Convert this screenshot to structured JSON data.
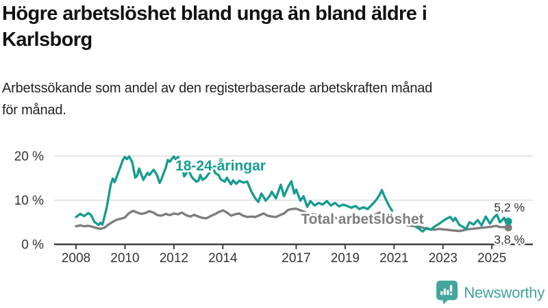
{
  "header": {
    "title_line1": "Högre arbetslöshet bland unga än bland äldre i",
    "title_line2": "Karlsborg",
    "subtitle_line1": "Arbetssökande som andel av den registerbaserade arbetskraften månad",
    "subtitle_line2": "för månad."
  },
  "footer": {
    "brand": "Newsworthy",
    "brand_color": "#3fa29a",
    "logo_icon": "newsworthy-speech-bubble-bar-chart-icon"
  },
  "chart_data": {
    "type": "line",
    "title": "Högre arbetslöshet bland unga än bland äldre i Karlsborg",
    "subtitle": "Arbetssökande som andel av den registerbaserade arbetskraften månad för månad.",
    "unit": "%",
    "grid": "horizontal-only",
    "legend_position": "inline-labels",
    "x_axis": {
      "ticks": [
        2008,
        2010,
        2012,
        2014,
        2017,
        2019,
        2021,
        2023,
        2025
      ],
      "range_years": [
        2007.1,
        2026.3
      ]
    },
    "y_axis": {
      "ticks": [
        {
          "value": 0,
          "label": "0 %"
        },
        {
          "value": 10,
          "label": "10 %"
        },
        {
          "value": 20,
          "label": "20 %"
        }
      ],
      "range": [
        0,
        22
      ]
    },
    "series": [
      {
        "name": "Total arbetslöshet",
        "color": "#7d7d7d",
        "end_value": 3.8,
        "end_label": "3,8 %",
        "segments": [
          [
            [
              2008.0,
              4.1
            ],
            [
              2008.17,
              4.3
            ],
            [
              2008.33,
              4.1
            ],
            [
              2008.5,
              4.2
            ],
            [
              2008.67,
              4.0
            ],
            [
              2008.83,
              3.7
            ],
            [
              2009.0,
              3.5
            ],
            [
              2009.17,
              3.8
            ],
            [
              2009.33,
              4.5
            ],
            [
              2009.5,
              5.1
            ],
            [
              2009.67,
              5.6
            ],
            [
              2009.83,
              5.8
            ],
            [
              2010.0,
              6.1
            ],
            [
              2010.17,
              7.1
            ],
            [
              2010.33,
              7.6
            ],
            [
              2010.5,
              7.2
            ],
            [
              2010.67,
              6.9
            ],
            [
              2010.83,
              7.1
            ],
            [
              2011.0,
              7.5
            ],
            [
              2011.17,
              7.2
            ],
            [
              2011.33,
              6.6
            ],
            [
              2011.5,
              6.5
            ],
            [
              2011.67,
              6.9
            ],
            [
              2011.83,
              6.6
            ],
            [
              2012.0,
              7.0
            ],
            [
              2012.17,
              6.8
            ],
            [
              2012.33,
              7.2
            ],
            [
              2012.5,
              6.6
            ],
            [
              2012.67,
              6.3
            ],
            [
              2012.83,
              6.7
            ],
            [
              2013.0,
              6.3
            ],
            [
              2013.17,
              6.0
            ],
            [
              2013.33,
              5.9
            ],
            [
              2013.5,
              6.4
            ],
            [
              2013.67,
              6.8
            ],
            [
              2013.83,
              7.3
            ],
            [
              2014.0,
              7.7
            ],
            [
              2014.17,
              7.2
            ],
            [
              2014.33,
              6.5
            ],
            [
              2014.5,
              6.8
            ],
            [
              2014.67,
              7.0
            ],
            [
              2014.83,
              6.5
            ],
            [
              2015.0,
              6.2
            ],
            [
              2015.17,
              6.3
            ],
            [
              2015.33,
              6.2
            ],
            [
              2015.5,
              6.6
            ],
            [
              2015.67,
              7.0
            ],
            [
              2015.83,
              6.5
            ],
            [
              2016.0,
              6.3
            ],
            [
              2016.17,
              6.2
            ],
            [
              2016.33,
              6.6
            ],
            [
              2016.5,
              7.0
            ],
            [
              2016.67,
              7.8
            ],
            [
              2016.83,
              8.0
            ],
            [
              2017.0,
              8.1
            ],
            [
              2017.17,
              7.7
            ],
            [
              2017.33,
              7.4
            ],
            [
              2017.5,
              7.0
            ],
            [
              2017.67,
              6.8
            ],
            [
              2017.83,
              6.6
            ],
            [
              2018.0,
              6.4
            ],
            [
              2018.25,
              6.2
            ],
            [
              2018.5,
              6.0
            ],
            [
              2018.75,
              5.9
            ],
            [
              2019.0,
              5.8
            ],
            [
              2019.25,
              5.7
            ],
            [
              2019.5,
              5.6
            ],
            [
              2019.75,
              5.7
            ],
            [
              2020.0,
              6.0
            ],
            [
              2020.25,
              6.8
            ],
            [
              2020.42,
              7.2
            ],
            [
              2020.58,
              7.0
            ],
            [
              2020.75,
              6.6
            ],
            [
              2020.92,
              6.2
            ],
            [
              2021.0,
              6.0
            ]
          ],
          [
            [
              2021.55,
              4.3
            ],
            [
              2021.7,
              4.2
            ],
            [
              2021.9,
              4.1
            ],
            [
              2022.0,
              4.0
            ],
            [
              2022.17,
              3.8
            ],
            [
              2022.33,
              3.5
            ],
            [
              2022.5,
              3.4
            ],
            [
              2022.67,
              3.3
            ],
            [
              2022.83,
              3.5
            ],
            [
              2023.0,
              3.4
            ],
            [
              2023.17,
              3.3
            ],
            [
              2023.33,
              3.2
            ],
            [
              2023.5,
              3.1
            ],
            [
              2023.67,
              3.0
            ],
            [
              2023.83,
              3.2
            ],
            [
              2024.0,
              3.4
            ],
            [
              2024.17,
              3.5
            ],
            [
              2024.33,
              3.6
            ],
            [
              2024.5,
              3.7
            ],
            [
              2024.67,
              3.8
            ],
            [
              2024.83,
              3.9
            ],
            [
              2025.0,
              4.0
            ],
            [
              2025.17,
              4.2
            ],
            [
              2025.33,
              3.9
            ],
            [
              2025.5,
              3.9
            ],
            [
              2025.67,
              3.8
            ]
          ]
        ]
      },
      {
        "name": "18-24-åringar",
        "color": "#169c8f",
        "end_value": 5.2,
        "end_label": "5,2 %",
        "segments": [
          [
            [
              2008.0,
              6.2
            ],
            [
              2008.17,
              6.9
            ],
            [
              2008.33,
              6.4
            ],
            [
              2008.5,
              7.1
            ],
            [
              2008.62,
              6.6
            ],
            [
              2008.75,
              5.1
            ],
            [
              2008.92,
              4.4
            ],
            [
              2009.0,
              4.9
            ],
            [
              2009.08,
              4.5
            ],
            [
              2009.25,
              8.2
            ],
            [
              2009.42,
              13.6
            ],
            [
              2009.5,
              14.9
            ],
            [
              2009.58,
              14.1
            ],
            [
              2009.75,
              16.6
            ],
            [
              2009.92,
              19.2
            ],
            [
              2010.0,
              19.8
            ],
            [
              2010.08,
              19.3
            ],
            [
              2010.17,
              19.9
            ],
            [
              2010.3,
              18.6
            ],
            [
              2010.42,
              15.1
            ],
            [
              2010.5,
              15.6
            ],
            [
              2010.58,
              17.2
            ],
            [
              2010.75,
              14.6
            ],
            [
              2010.92,
              16.2
            ],
            [
              2011.0,
              15.7
            ],
            [
              2011.17,
              16.9
            ],
            [
              2011.3,
              15.8
            ],
            [
              2011.42,
              13.9
            ],
            [
              2011.5,
              14.9
            ],
            [
              2011.67,
              17.4
            ],
            [
              2011.75,
              19.1
            ],
            [
              2011.83,
              18.7
            ],
            [
              2011.92,
              19.4
            ],
            [
              2012.0,
              19.9
            ],
            [
              2012.08,
              19.2
            ],
            [
              2012.17,
              19.8
            ],
            [
              2012.33,
              17.7
            ],
            [
              2012.42,
              15.4
            ],
            [
              2012.5,
              16.0
            ],
            [
              2012.58,
              16.9
            ],
            [
              2012.75,
              15.1
            ],
            [
              2012.92,
              14.2
            ],
            [
              2013.0,
              14.4
            ],
            [
              2013.08,
              15.7
            ],
            [
              2013.17,
              14.6
            ],
            [
              2013.3,
              15.1
            ],
            [
              2013.42,
              16.0
            ],
            [
              2013.58,
              17.4
            ],
            [
              2013.7,
              16.1
            ],
            [
              2013.83,
              15.7
            ],
            [
              2013.92,
              14.7
            ],
            [
              2014.08,
              14.2
            ],
            [
              2014.17,
              15.1
            ],
            [
              2014.33,
              13.6
            ],
            [
              2014.42,
              14.5
            ],
            [
              2014.55,
              13.7
            ],
            [
              2014.67,
              14.4
            ],
            [
              2014.83,
              14.0
            ],
            [
              2015.0,
              14.2
            ],
            [
              2015.17,
              11.9
            ],
            [
              2015.33,
              10.4
            ],
            [
              2015.45,
              9.6
            ],
            [
              2015.58,
              11.5
            ],
            [
              2015.75,
              9.9
            ],
            [
              2015.92,
              11.0
            ],
            [
              2016.0,
              11.9
            ],
            [
              2016.17,
              10.4
            ],
            [
              2016.37,
              13.5
            ],
            [
              2016.5,
              10.9
            ],
            [
              2016.67,
              13.0
            ],
            [
              2016.8,
              14.3
            ],
            [
              2016.92,
              11.5
            ],
            [
              2017.0,
              12.4
            ],
            [
              2017.17,
              9.9
            ],
            [
              2017.3,
              10.9
            ],
            [
              2017.45,
              8.5
            ],
            [
              2017.58,
              9.8
            ],
            [
              2017.75,
              8.8
            ],
            [
              2017.92,
              9.4
            ],
            [
              2018.08,
              9.0
            ],
            [
              2018.25,
              9.8
            ],
            [
              2018.42,
              8.8
            ],
            [
              2018.58,
              9.4
            ],
            [
              2018.75,
              8.6
            ],
            [
              2018.92,
              9.0
            ],
            [
              2019.08,
              8.7
            ],
            [
              2019.25,
              8.3
            ],
            [
              2019.42,
              8.7
            ],
            [
              2019.58,
              8.0
            ],
            [
              2019.75,
              8.4
            ],
            [
              2019.92,
              8.0
            ],
            [
              2020.08,
              8.9
            ],
            [
              2020.25,
              9.9
            ],
            [
              2020.42,
              11.3
            ],
            [
              2020.5,
              12.3
            ],
            [
              2020.62,
              10.7
            ],
            [
              2020.78,
              8.9
            ],
            [
              2020.92,
              7.6
            ]
          ],
          [
            [
              2021.9,
              3.9
            ],
            [
              2022.0,
              3.6
            ],
            [
              2022.17,
              2.9
            ],
            [
              2022.33,
              3.7
            ],
            [
              2022.5,
              3.3
            ],
            [
              2022.67,
              4.1
            ],
            [
              2022.83,
              4.6
            ],
            [
              2023.0,
              5.3
            ],
            [
              2023.17,
              5.9
            ],
            [
              2023.3,
              6.2
            ],
            [
              2023.42,
              5.3
            ],
            [
              2023.5,
              6.0
            ],
            [
              2023.67,
              4.4
            ],
            [
              2023.83,
              3.9
            ],
            [
              2023.95,
              3.5
            ],
            [
              2024.08,
              5.0
            ],
            [
              2024.25,
              4.5
            ],
            [
              2024.42,
              5.5
            ],
            [
              2024.58,
              4.3
            ],
            [
              2024.75,
              6.3
            ],
            [
              2024.92,
              4.7
            ],
            [
              2025.08,
              6.1
            ],
            [
              2025.2,
              6.7
            ],
            [
              2025.33,
              5.0
            ],
            [
              2025.5,
              6.0
            ],
            [
              2025.58,
              4.9
            ],
            [
              2025.67,
              5.2
            ]
          ]
        ]
      }
    ],
    "series_labels": [
      {
        "text": "18-24-åringar",
        "x": 322,
        "y": 249,
        "color": "#169c8f"
      },
      {
        "text": "Total arbetslöshet",
        "x": 529,
        "y": 327,
        "color": "#7d7d7d"
      }
    ],
    "end_labels": [
      {
        "text": "5,2 %",
        "x": 766,
        "y": 309
      },
      {
        "text": "3,8 %",
        "x": 766,
        "y": 356
      }
    ]
  }
}
